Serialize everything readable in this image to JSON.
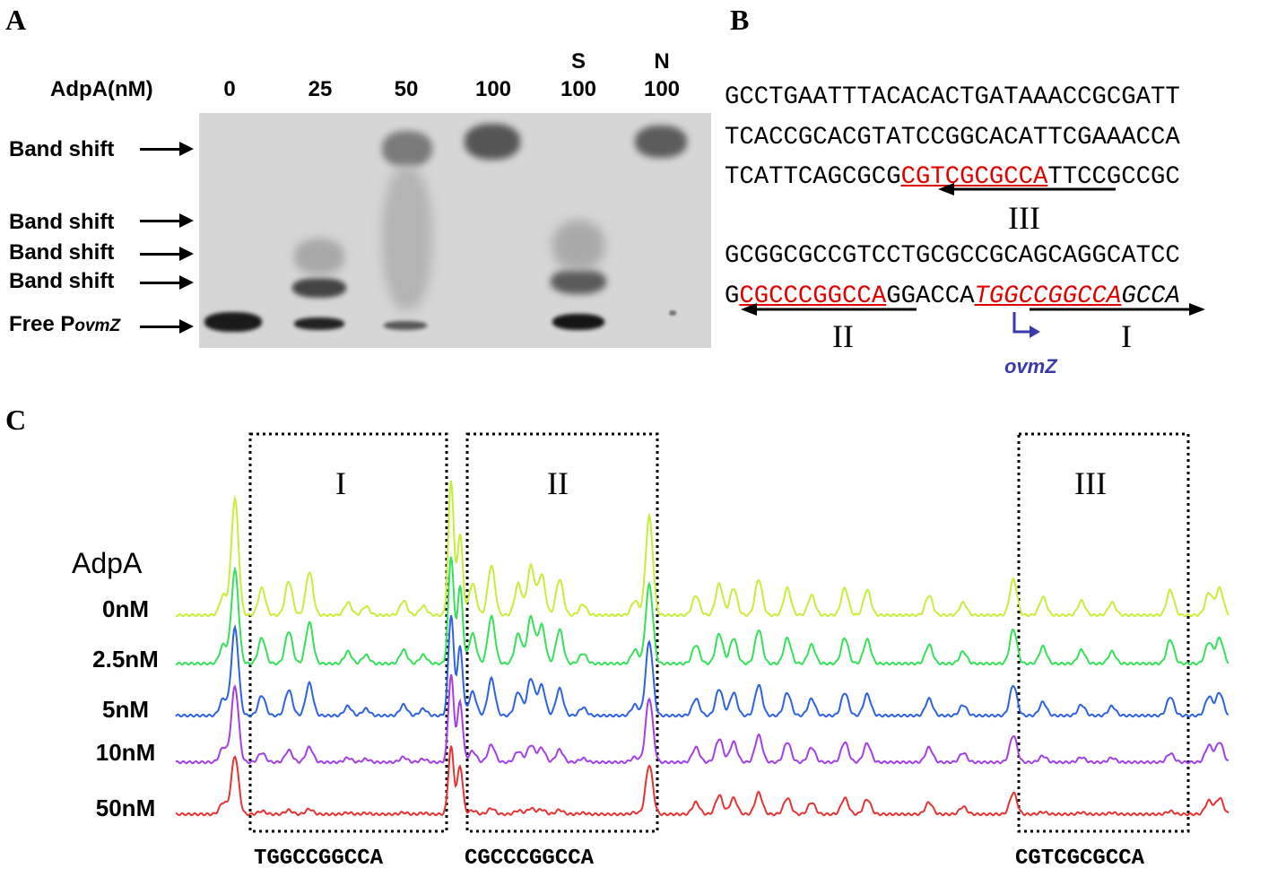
{
  "panels": {
    "a": "A",
    "b": "B",
    "c": "C"
  },
  "gel": {
    "concentration_label": "AdpA(nM)",
    "lanes": [
      {
        "top": "",
        "value": "0"
      },
      {
        "top": "",
        "value": "25"
      },
      {
        "top": "",
        "value": "50"
      },
      {
        "top": "",
        "value": "100"
      },
      {
        "top": "S",
        "value": "100"
      },
      {
        "top": "N",
        "value": "100"
      }
    ],
    "side_labels": [
      "Band shift",
      "Band shift",
      "Band shift",
      "Band shift"
    ],
    "free_label_prefix": "Free P",
    "free_label_sub": "ovmZ"
  },
  "sequence": {
    "line1": "GCCTGAATTTACACACTGATAAACCGCGATT",
    "line2": "TCACCGCACGTATCCGGCACATTCGAAACCA",
    "line3_pre": "TCATTCAGCGCG",
    "line3_site": "CGTCGCGCCA",
    "line3_post": "TTCCGCCGC",
    "line4": "GCGGCGCCGTCCTGCGCCGCAGCAGGCATCC",
    "line5_pre": "G",
    "line5_site2": "CGCCCGGCCA",
    "line5_mid": "GGACCA",
    "line5_site1": "TGGCCGGCCA",
    "line5_post": "GCCA",
    "site_labels": {
      "I": "I",
      "II": "II",
      "III": "III"
    },
    "gene_label": "ovmZ",
    "red_color": "#e00000",
    "gene_color": "#3a3aa8"
  },
  "traces": {
    "header": "AdpA",
    "concentrations": [
      "0nM",
      "2.5nM",
      "5nM",
      "10nM",
      "50nM"
    ],
    "colors": [
      "#c7ee3a",
      "#36e05a",
      "#2f62e0",
      "#a43fe6",
      "#e63333"
    ],
    "box_labels": [
      "I",
      "II",
      "III"
    ],
    "box_sequences": [
      "TGGCCGGCCA",
      "CGCCCGGCCA",
      "CGTCGCGCCA"
    ]
  }
}
